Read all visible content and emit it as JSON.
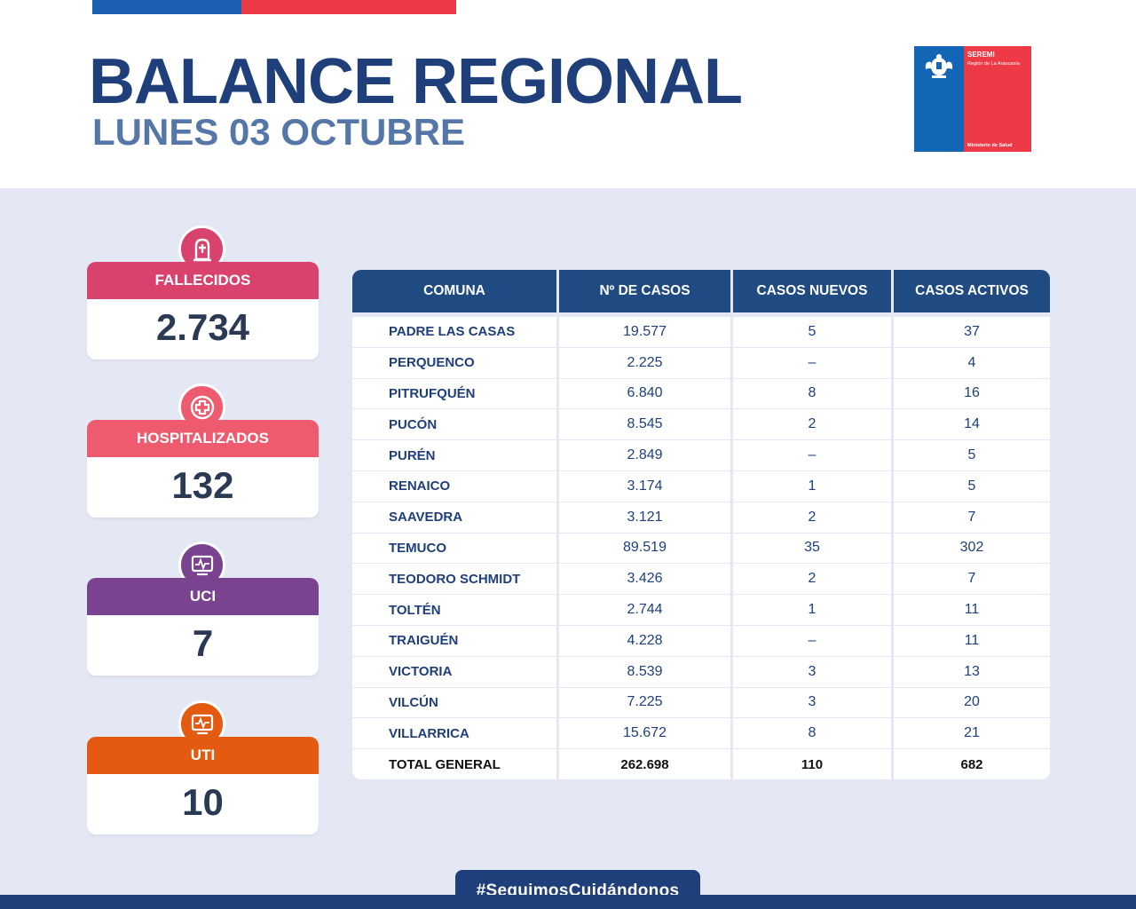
{
  "header": {
    "title": "BALANCE REGIONAL",
    "subtitle": "LUNES 03 OCTUBRE"
  },
  "logo": {
    "line1": "SEREMI",
    "line2": "Región de La Araucanía",
    "line3": "Ministerio de Salud"
  },
  "stats": [
    {
      "label": "FALLECIDOS",
      "value": "2.734",
      "color": "#d9426c",
      "icon": "tombstone-icon"
    },
    {
      "label": "HOSPITALIZADOS",
      "value": "132",
      "color": "#ee5a6e",
      "icon": "medical-cross-icon"
    },
    {
      "label": "UCI",
      "value": "7",
      "color": "#7a4390",
      "icon": "monitor-icon"
    },
    {
      "label": "UTI",
      "value": "10",
      "color": "#e35a10",
      "icon": "monitor-icon"
    }
  ],
  "table": {
    "headers": [
      "COMUNA",
      "Nº DE CASOS",
      "CASOS NUEVOS",
      "CASOS ACTIVOS"
    ],
    "rows": [
      [
        "PADRE LAS CASAS",
        "19.577",
        "5",
        "37"
      ],
      [
        "PERQUENCO",
        "2.225",
        "–",
        "4"
      ],
      [
        "PITRUFQUÉN",
        "6.840",
        "8",
        "16"
      ],
      [
        "PUCÓN",
        "8.545",
        "2",
        "14"
      ],
      [
        "PURÉN",
        "2.849",
        "–",
        "5"
      ],
      [
        "RENAICO",
        "3.174",
        "1",
        "5"
      ],
      [
        "SAAVEDRA",
        "3.121",
        "2",
        "7"
      ],
      [
        "TEMUCO",
        "89.519",
        "35",
        "302"
      ],
      [
        "TEODORO SCHMIDT",
        "3.426",
        "2",
        "7"
      ],
      [
        "TOLTÉN",
        "2.744",
        "1",
        "11"
      ],
      [
        "TRAIGUÉN",
        "4.228",
        "–",
        "11"
      ],
      [
        "VICTORIA",
        "8.539",
        "3",
        "13"
      ],
      [
        "VILCÚN",
        "7.225",
        "3",
        "20"
      ],
      [
        "VILLARRICA",
        "15.672",
        "8",
        "21"
      ]
    ],
    "total": [
      "TOTAL GENERAL",
      "262.698",
      "110",
      "682"
    ]
  },
  "footer": {
    "hashtag": "#SeguimosCuidándonos"
  },
  "colors": {
    "navy": "#1f3f7a",
    "blue": "#1a5fb4",
    "red": "#ee3a46",
    "panel": "#e4e8f4"
  }
}
